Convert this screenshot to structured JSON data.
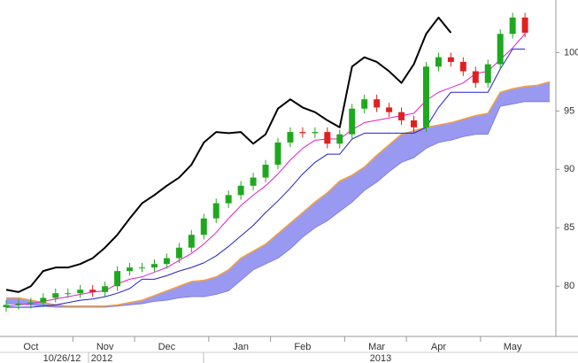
{
  "chart_data": {
    "type": "candlestick",
    "categories": [
      null,
      null,
      "Oct",
      null,
      null,
      null,
      null,
      null,
      "Nov",
      null,
      null,
      null,
      null,
      "Dec",
      null,
      null,
      null,
      null,
      null,
      "Jan",
      null,
      null,
      null,
      null,
      "Feb",
      null,
      null,
      null,
      null,
      null,
      "Mar",
      null,
      null,
      null,
      null,
      "Apr",
      null,
      null,
      null,
      null,
      null,
      "May",
      null,
      null,
      null
    ],
    "open": [
      78.2,
      78.4,
      78.5,
      78.6,
      79.0,
      79.4,
      79.4,
      79.7,
      79.5,
      80.0,
      81.3,
      81.6,
      81.6,
      81.9,
      82.4,
      83.3,
      84.4,
      85.8,
      87.1,
      87.8,
      88.6,
      89.3,
      90.4,
      92.3,
      93.2,
      93.1,
      93.2,
      92.2,
      93.0,
      95.2,
      96.0,
      95.3,
      94.9,
      94.2,
      93.6,
      98.8,
      99.6,
      99.2,
      98.4,
      97.4,
      99.0,
      101.6,
      103.0,
      null,
      null
    ],
    "high": [
      78.8,
      78.9,
      79.0,
      79.4,
      79.8,
      79.8,
      80.1,
      80.1,
      80.4,
      81.7,
      82.0,
      82.0,
      82.3,
      82.8,
      83.7,
      84.8,
      86.2,
      87.5,
      88.2,
      89.0,
      89.7,
      90.8,
      92.7,
      93.6,
      93.6,
      93.6,
      93.6,
      93.4,
      95.6,
      96.4,
      96.4,
      95.7,
      95.3,
      94.6,
      99.2,
      100.0,
      100.0,
      99.6,
      98.8,
      99.4,
      102.0,
      103.4,
      103.4,
      null,
      null
    ],
    "low": [
      77.8,
      78.0,
      78.1,
      78.2,
      78.6,
      79.0,
      79.0,
      79.1,
      79.1,
      79.6,
      80.9,
      81.2,
      81.2,
      81.5,
      82.0,
      82.9,
      84.0,
      85.4,
      86.7,
      87.4,
      88.2,
      88.9,
      90.0,
      91.9,
      92.7,
      92.7,
      91.8,
      91.8,
      92.6,
      94.8,
      94.9,
      94.5,
      93.8,
      93.2,
      93.2,
      98.4,
      98.8,
      98.0,
      97.0,
      97.0,
      98.6,
      101.2,
      101.3,
      null,
      null
    ],
    "close": [
      78.4,
      78.5,
      78.6,
      79.0,
      79.4,
      79.4,
      79.7,
      79.5,
      80.0,
      81.3,
      81.6,
      81.6,
      81.9,
      82.4,
      83.3,
      84.4,
      85.8,
      87.1,
      87.8,
      88.6,
      89.3,
      90.4,
      92.3,
      93.2,
      93.1,
      93.2,
      92.2,
      93.0,
      95.2,
      96.0,
      95.3,
      94.9,
      94.2,
      93.6,
      98.8,
      99.6,
      99.2,
      98.4,
      97.4,
      99.0,
      101.6,
      103.0,
      101.7,
      null,
      null
    ],
    "up_color": "#1fa81f",
    "down_color": "#e02020",
    "cloud": {
      "color": "#9999f2",
      "upper": {
        "color": "#f4a040",
        "values": [
          79.0,
          79.0,
          78.8,
          78.6,
          78.4,
          78.3,
          78.3,
          78.3,
          78.3,
          78.4,
          78.6,
          78.8,
          79.2,
          79.6,
          80.0,
          80.4,
          80.5,
          80.8,
          81.4,
          82.4,
          83.0,
          83.6,
          84.5,
          85.4,
          86.3,
          87.2,
          88.0,
          89.0,
          89.5,
          90.2,
          91.2,
          92.1,
          93.0,
          93.3,
          93.6,
          93.8,
          94.0,
          94.3,
          94.6,
          94.8,
          96.6,
          96.9,
          97.1,
          97.2,
          97.5
        ]
      },
      "lower": {
        "color": "#7777dd",
        "values": [
          78.5,
          78.5,
          78.4,
          78.3,
          78.2,
          78.2,
          78.2,
          78.2,
          78.2,
          78.3,
          78.4,
          78.5,
          78.7,
          78.8,
          79.0,
          79.1,
          79.1,
          79.3,
          79.6,
          80.5,
          81.4,
          81.9,
          82.4,
          83.2,
          84.2,
          85.0,
          85.6,
          86.4,
          87.2,
          88.2,
          88.9,
          89.8,
          90.6,
          91.0,
          91.8,
          92.3,
          92.5,
          92.8,
          93.0,
          93.0,
          95.4,
          95.6,
          95.8,
          95.8,
          95.8
        ]
      }
    },
    "lines": [
      {
        "color": "#000000",
        "width": 2,
        "values": [
          79.7,
          79.5,
          80.0,
          81.3,
          81.6,
          81.6,
          81.9,
          82.4,
          83.3,
          84.4,
          85.8,
          87.1,
          87.8,
          88.6,
          89.3,
          90.4,
          92.3,
          93.2,
          93.1,
          93.2,
          92.2,
          93.0,
          95.2,
          96.0,
          95.3,
          94.9,
          94.2,
          93.6,
          98.8,
          99.6,
          99.2,
          98.4,
          97.4,
          99.0,
          101.6,
          103.0,
          101.7,
          null,
          null,
          null,
          null,
          null,
          null,
          null,
          null
        ]
      },
      {
        "color": "#e020c8",
        "width": 1,
        "values": [
          78.3,
          78.4,
          78.5,
          78.7,
          78.9,
          79.1,
          79.3,
          79.5,
          79.6,
          80.2,
          80.6,
          80.8,
          81.2,
          81.6,
          82.2,
          82.8,
          83.6,
          84.6,
          85.8,
          86.9,
          87.8,
          88.6,
          89.6,
          90.8,
          91.8,
          92.5,
          92.6,
          92.6,
          93.4,
          94.0,
          94.2,
          94.4,
          94.6,
          94.8,
          95.9,
          96.6,
          97.0,
          97.4,
          98.2,
          98.4,
          99.4,
          100.4,
          101.6,
          null,
          null
        ]
      },
      {
        "color": "#2020d0",
        "width": 1,
        "values": [
          78.2,
          78.2,
          78.2,
          78.3,
          78.4,
          78.6,
          78.8,
          78.9,
          79.1,
          79.4,
          79.8,
          80.6,
          80.6,
          80.9,
          81.3,
          81.6,
          82.0,
          82.6,
          83.4,
          84.3,
          85.2,
          86.3,
          87.3,
          88.4,
          89.6,
          90.6,
          91.3,
          91.3,
          92.6,
          93.1,
          93.1,
          93.1,
          93.1,
          93.1,
          93.6,
          95.3,
          96.6,
          96.6,
          96.6,
          96.6,
          98.6,
          100.3,
          100.3,
          null,
          null
        ]
      }
    ],
    "ylim": [
      75.7,
      104.5
    ],
    "yticks": [
      80,
      85,
      90,
      95,
      100
    ],
    "year_labels": [
      "10/26/12",
      "2012",
      "2013"
    ]
  }
}
